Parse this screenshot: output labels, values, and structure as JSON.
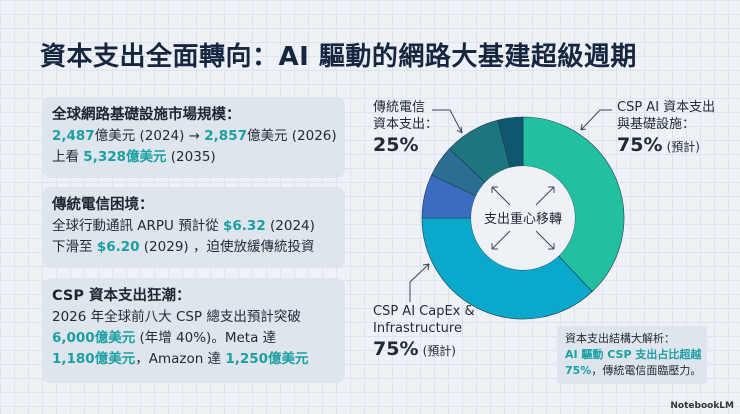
{
  "title": "資本支出全面轉向：AI 驅動的網路大基建超級週期",
  "cards": [
    {
      "heading": "全球網路基礎設施市場規模：",
      "l1a": "2,487",
      "l1b": "億美元 (2024) → ",
      "l1c": "2,857",
      "l1d": "億美元 (2026)",
      "l2a": "上看 ",
      "l2b": "5,328億美元",
      "l2c": " (2035)"
    },
    {
      "heading": "傳統電信困境：",
      "l1a": "全球行動通訊 ARPU 預計從 ",
      "l1b": "$6.32",
      "l1c": " (2024)",
      "l2a": "下滑至 ",
      "l2b": "$6.20",
      "l2c": " (2029) ，迫使放緩傳統投資"
    },
    {
      "heading": "CSP 資本支出狂潮：",
      "l1": "2026 年全球前八大 CSP 總支出預計突破",
      "l2a": "6,000億美元",
      "l2b": " (年增 40%)。Meta 達",
      "l3a": "1,180億美元",
      "l3b": "，Amazon 達 ",
      "l3c": "1,250億美元"
    }
  ],
  "chart_data": {
    "type": "pie",
    "center_label": "支出重心移轉",
    "segments": [
      {
        "group": "CSP",
        "value": 38,
        "color": "#22bfa3"
      },
      {
        "group": "CSP",
        "value": 37,
        "color": "#0aa9cb"
      },
      {
        "group": "Telecom",
        "value": 7,
        "color": "#3a6cbf"
      },
      {
        "group": "Telecom",
        "value": 5,
        "color": "#2a6e93"
      },
      {
        "group": "Telecom",
        "value": 9,
        "color": "#1d7580"
      },
      {
        "group": "Telecom",
        "value": 4,
        "color": "#0f5670"
      }
    ],
    "labels": {
      "telecom": {
        "l1": "傳統電信",
        "l2": "資本支出：",
        "pct": "25%"
      },
      "csp_zh": {
        "l1": "CSP AI 資本支出",
        "l2": "與基礎設施：",
        "pct": "75%",
        "note": "(預計)"
      },
      "csp_en": {
        "l1": "CSP AI CapEx &",
        "l2": "Infrastructure",
        "pct": "75%",
        "note": "(預計)"
      }
    }
  },
  "note": {
    "l1": "資本支出結構大解析：",
    "l2": "AI 驅動 CSP 支出占比超越",
    "l3a": "75%",
    "l3b": "，傳統電信面臨壓力。"
  },
  "logo": "NotebookLM"
}
